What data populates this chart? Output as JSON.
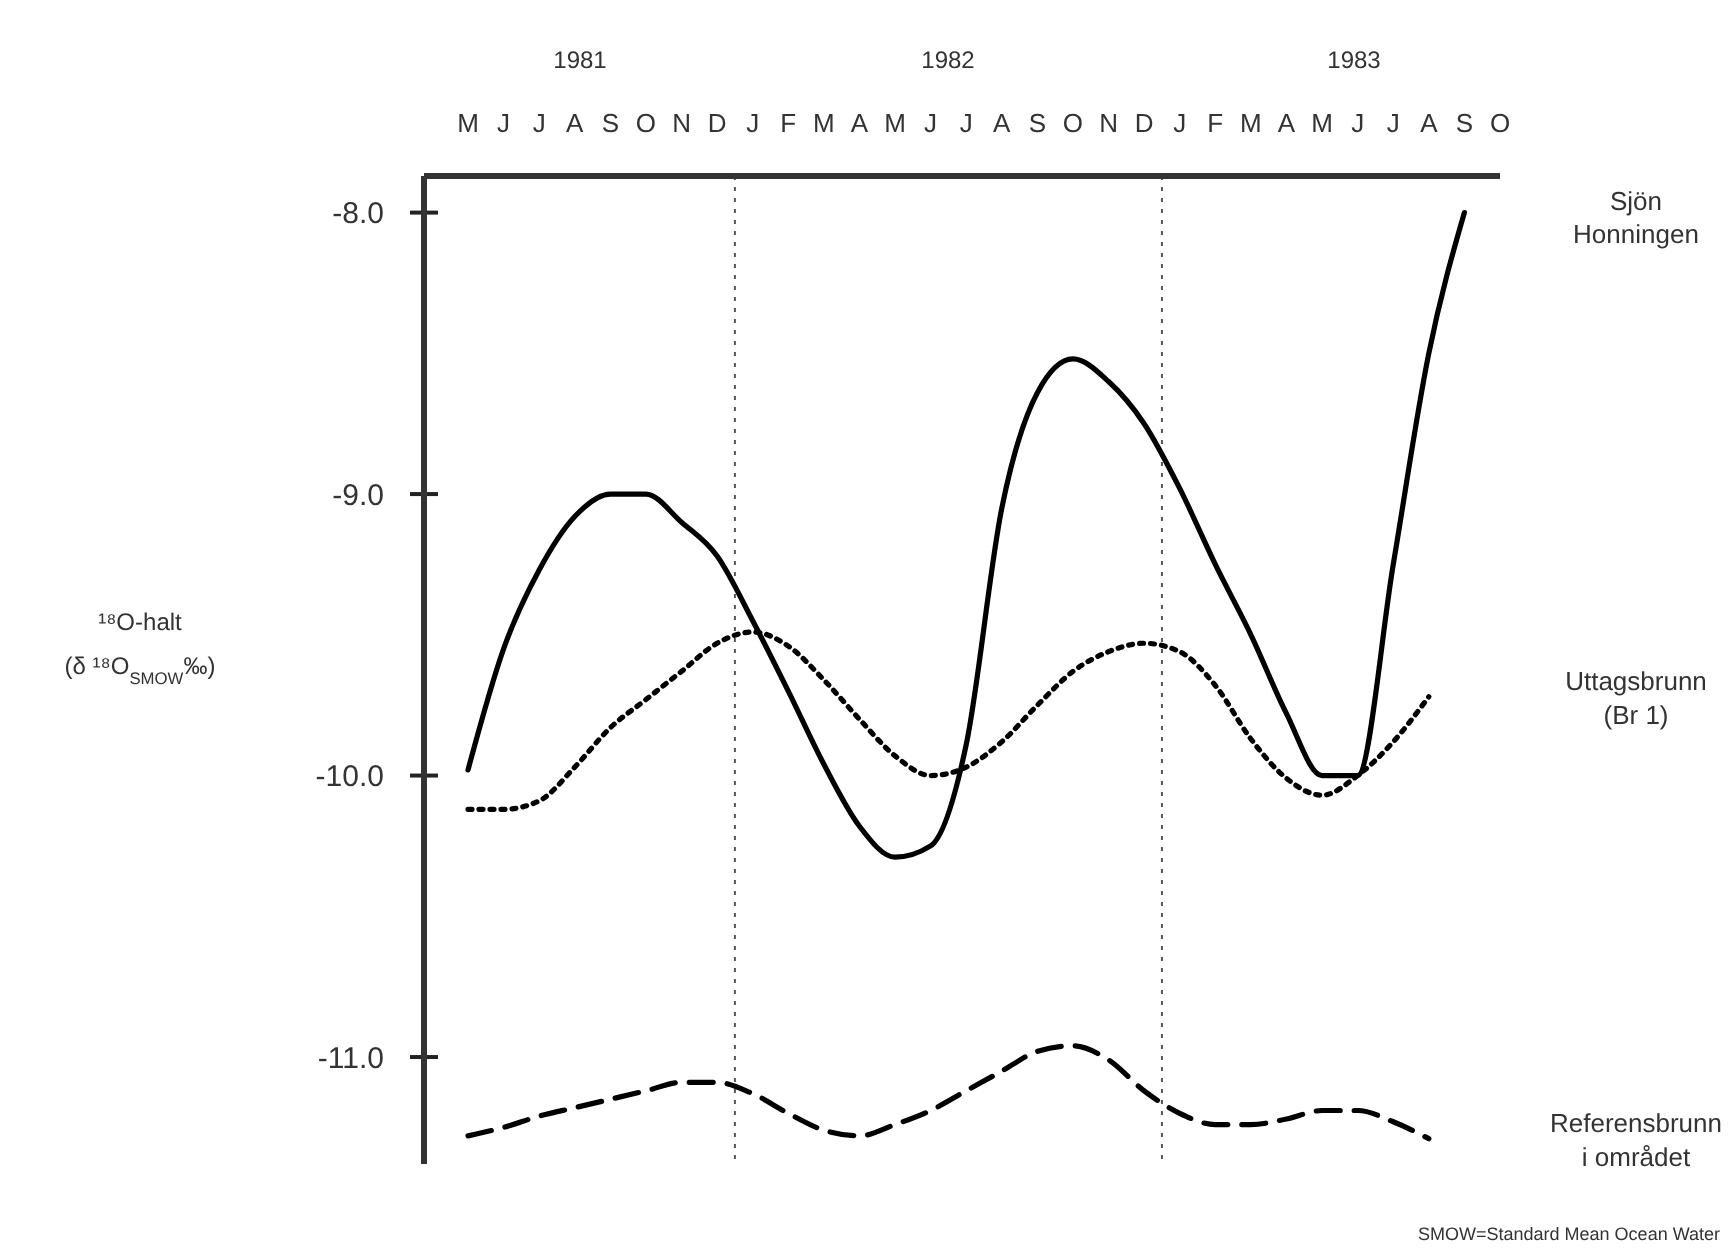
{
  "chart_data": {
    "type": "line",
    "ylabel": "¹⁸O-halt\n(δ ¹⁸O$_{SMOW}$‰)",
    "categories": [
      "M",
      "J",
      "J",
      "A",
      "S",
      "O",
      "N",
      "D",
      "J",
      "F",
      "M",
      "A",
      "M",
      "J",
      "J",
      "A",
      "S",
      "O",
      "N",
      "D",
      "J",
      "F",
      "M",
      "A",
      "M",
      "J",
      "J",
      "A",
      "S",
      "O"
    ],
    "ylim": [
      -11.38,
      -7.87
    ],
    "yticks": [
      {
        "value": -8,
        "label": "-8.0"
      },
      {
        "value": -9,
        "label": "-9.0"
      },
      {
        "value": -10,
        "label": "-10.0"
      },
      {
        "value": -11,
        "label": "-11.0"
      }
    ],
    "legend": false,
    "marker": "none",
    "series": [
      {
        "name": "Sjön Honningen",
        "color": "#000000",
        "line_style": "solid",
        "values": [
          -9.98,
          -9.55,
          -9.27,
          -9.08,
          -9.0,
          -9.0,
          -9.1,
          -9.22,
          -9.45,
          -9.7,
          -9.96,
          -10.18,
          -10.29,
          -10.25,
          -9.89,
          -9.05,
          -8.64,
          -8.52,
          -8.6,
          -8.75,
          -8.98,
          -9.25,
          -9.5,
          -9.78,
          -10.0,
          -10.0,
          -9.25,
          -8.5,
          -8.0,
          null
        ]
      },
      {
        "name": "Uttagsbrunn (Br 1)",
        "color": "#000000",
        "line_style": "dotted",
        "values": [
          -10.12,
          -10.12,
          -10.09,
          -9.97,
          -9.83,
          -9.73,
          -9.63,
          -9.53,
          -9.49,
          -9.54,
          -9.66,
          -9.8,
          -9.93,
          -10.0,
          -9.97,
          -9.88,
          -9.75,
          -9.63,
          -9.56,
          -9.53,
          -9.56,
          -9.68,
          -9.87,
          -10.01,
          -10.07,
          -10.0,
          -9.88,
          -9.72,
          null,
          null
        ]
      },
      {
        "name": "Referensbrunn i området",
        "color": "#000000",
        "line_style": "dashed",
        "values": [
          -11.28,
          -11.25,
          -11.21,
          -11.18,
          -11.15,
          -11.12,
          -11.09,
          -11.09,
          -11.13,
          -11.2,
          -11.26,
          -11.28,
          -11.24,
          -11.19,
          -11.12,
          -11.05,
          -10.98,
          -10.96,
          -11.01,
          -11.12,
          -11.2,
          -11.24,
          -11.24,
          -11.22,
          -11.19,
          -11.19,
          -11.23,
          -11.29,
          null,
          null
        ]
      }
    ],
    "annotations": [
      "1981",
      "1982",
      "1983",
      "SMOW=Standard Mean Ocean Water"
    ]
  }
}
